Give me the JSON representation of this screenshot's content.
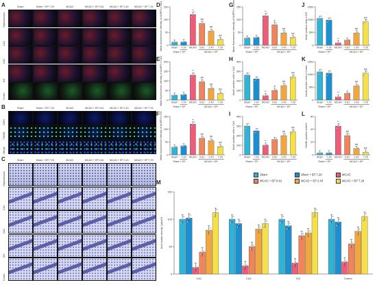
{
  "colors": {
    "sham": "#2fb4d8",
    "sham_ep": "#1d8fd0",
    "mcao": "#ef5c78",
    "mcao_ep081": "#f0845a",
    "mcao_ep243": "#f2a640",
    "mcao_ep729": "#f5e04a"
  },
  "panels": {
    "A": "A",
    "B": "B",
    "C": "C",
    "D": "D",
    "E": "E",
    "F": "F",
    "G": "G",
    "H": "H",
    "I": "I",
    "J": "J",
    "K": "K",
    "L": "L",
    "M": "M"
  },
  "image_cols": [
    "Sham",
    "Sham + EP 7.29",
    "MCAO",
    "MCAO + EP 0.81",
    "MCAO + EP 2.43",
    "MCAO + EP 7.29"
  ],
  "rows_A": [
    "Hippocampus",
    "CA1",
    "CA3",
    "DG",
    "Cortex"
  ],
  "rows_B": [
    "DAPI",
    "TUNEL",
    "Merge"
  ],
  "rows_C": [
    "Hippocampus",
    "CA1",
    "CA3",
    "DG",
    "Cortex"
  ],
  "x_tick_row1": [
    "Sham",
    "7.29",
    "MCAO",
    "0.81",
    "2.43",
    "7.29"
  ],
  "x_group_left": "Sham + EP",
  "x_group_right": "MCAO + EP",
  "legend": [
    "Sham",
    "Sham + EP 7.29",
    "MCAO",
    "MCAO + EP 0.81",
    "MCAO + EP 2.43",
    "MCAO + EP 7.29"
  ],
  "chart_data": [
    {
      "panel": "D",
      "type": "bar",
      "ylabel": "Mean fluorescence intensity of NLRP3 in CA1",
      "ylim": [
        0,
        150
      ],
      "yticks": [
        0,
        50,
        100,
        150
      ],
      "values": [
        12,
        13,
        120,
        85,
        55,
        22
      ],
      "sig": [
        "",
        "",
        "**",
        "##",
        "##",
        "##"
      ]
    },
    {
      "panel": "E",
      "type": "bar",
      "ylabel": "Mean fluorescence intensity of NLRP3 in CA3",
      "ylim": [
        0,
        200
      ],
      "yticks": [
        0,
        50,
        100,
        150,
        200
      ],
      "values": [
        25,
        28,
        130,
        95,
        60,
        35
      ],
      "sig": [
        "",
        "",
        "**",
        "##",
        "##",
        "##"
      ]
    },
    {
      "panel": "F",
      "type": "bar",
      "ylabel": "Mean fluorescence intensity of NLRP3 in DG",
      "ylim": [
        0,
        150
      ],
      "yticks": [
        0,
        50,
        100,
        150
      ],
      "values": [
        30,
        35,
        120,
        65,
        55,
        32
      ],
      "sig": [
        "",
        "",
        "**",
        "##",
        "##",
        "##"
      ]
    },
    {
      "panel": "G",
      "type": "bar",
      "ylabel": "Mean fluorescence intensity of NLRP3 in Cortex",
      "ylim": [
        0,
        150
      ],
      "yticks": [
        0,
        50,
        100,
        150
      ],
      "values": [
        28,
        30,
        115,
        80,
        48,
        30
      ],
      "sig": [
        "",
        "",
        "**",
        "#",
        "##",
        "##"
      ]
    },
    {
      "panel": "H",
      "type": "bar",
      "ylabel": "NeuN positive cells in CA1",
      "ylim": [
        0,
        400
      ],
      "yticks": [
        0,
        100,
        200,
        300,
        400
      ],
      "values": [
        260,
        220,
        45,
        100,
        150,
        240
      ],
      "sig": [
        "",
        "",
        "**",
        "#",
        "##",
        "##"
      ]
    },
    {
      "panel": "I",
      "type": "bar",
      "ylabel": "NeuN positive cells in CA3",
      "ylim": [
        0,
        400
      ],
      "yticks": [
        0,
        100,
        200,
        300,
        400
      ],
      "values": [
        300,
        250,
        100,
        160,
        200,
        240
      ],
      "sig": [
        "",
        "",
        "**",
        "",
        "##",
        "##"
      ]
    },
    {
      "panel": "J",
      "type": "bar",
      "ylabel": "NeuN positive cells in DG",
      "ylim": [
        0,
        1500
      ],
      "yticks": [
        0,
        500,
        1000,
        1500
      ],
      "values": [
        1050,
        980,
        90,
        200,
        480,
        920
      ],
      "sig": [
        "",
        "",
        "**",
        "",
        "##",
        "##"
      ]
    },
    {
      "panel": "K",
      "type": "bar",
      "ylabel": "NeuN positive cells in Cortex",
      "ylim": [
        0,
        1500
      ],
      "yticks": [
        0,
        500,
        1000,
        1500
      ],
      "values": [
        1100,
        1050,
        120,
        260,
        550,
        1050
      ],
      "sig": [
        "",
        "",
        "**",
        "",
        "##",
        "##"
      ]
    },
    {
      "panel": "L",
      "type": "bar",
      "ylabel": "TUNEL positive cells/%",
      "ylim": [
        0,
        60
      ],
      "yticks": [
        0,
        20,
        40,
        60
      ],
      "values": [
        3,
        3,
        45,
        30,
        10,
        4
      ],
      "sig": [
        "",
        "",
        "**",
        "##",
        "##",
        "##"
      ]
    },
    {
      "panel": "M",
      "type": "bar",
      "ylabel": "Nissl bodies density (ratio)/%",
      "ylim": [
        0,
        150
      ],
      "yticks": [
        0,
        50,
        100,
        150
      ],
      "categories": [
        "CA1",
        "CA3",
        "DG",
        "Cortex"
      ],
      "series": [
        {
          "name": "Sham",
          "values": [
            100,
            100,
            100,
            100
          ]
        },
        {
          "name": "Sham + EP 7.29",
          "values": [
            102,
            92,
            88,
            95
          ]
        },
        {
          "name": "MCAO",
          "values": [
            12,
            15,
            20,
            22
          ]
        },
        {
          "name": "MCAO + EP 0.81",
          "values": [
            40,
            50,
            70,
            55
          ]
        },
        {
          "name": "MCAO + EP 2.43",
          "values": [
            80,
            82,
            75,
            78
          ]
        },
        {
          "name": "MCAO + EP 7.29",
          "values": [
            112,
            92,
            112,
            105
          ]
        }
      ]
    }
  ]
}
